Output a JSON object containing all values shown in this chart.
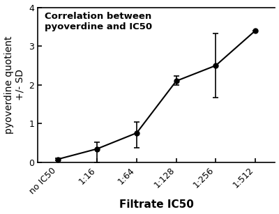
{
  "categories": [
    "no IC50",
    "1:16",
    "1:64",
    "1:128",
    "1:256",
    "1:512"
  ],
  "y_values": [
    0.08,
    0.35,
    0.76,
    2.1,
    2.5,
    3.4
  ],
  "y_err_upper": [
    0.03,
    0.17,
    0.28,
    0.13,
    0.82,
    0.0
  ],
  "y_err_lower": [
    0.03,
    0.35,
    0.38,
    0.1,
    0.82,
    0.0
  ],
  "ylabel": "pyoverdine quotient\n+/- SD",
  "xlabel": "Filtrate IC50",
  "annotation_line1": "Correlation between",
  "annotation_line2": "pyoverdine and IC50",
  "ylim": [
    0,
    4
  ],
  "yticks": [
    0,
    1,
    2,
    3,
    4
  ],
  "line_color": "#000000",
  "marker_color": "#000000",
  "background_color": "#ffffff",
  "annotation_fontsize": 9.5,
  "axis_label_fontsize": 10,
  "xlabel_fontsize": 11,
  "tick_label_fontsize": 9
}
